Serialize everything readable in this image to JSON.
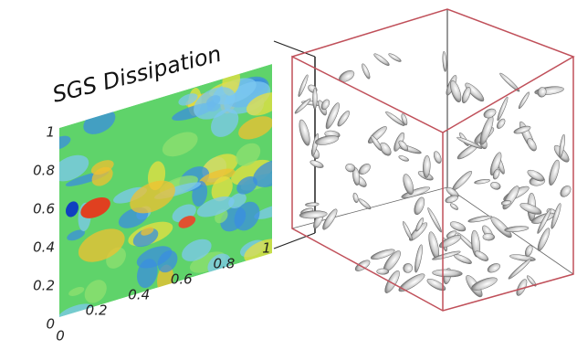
{
  "panel": {
    "title": "SGS Dissipation",
    "yticks": [
      "0",
      "0.2",
      "0.4",
      "0.6",
      "0.8",
      "1"
    ],
    "xticks": [
      "0",
      "0.2",
      "0.4",
      "0.6",
      "0.8",
      "1"
    ]
  }
}
